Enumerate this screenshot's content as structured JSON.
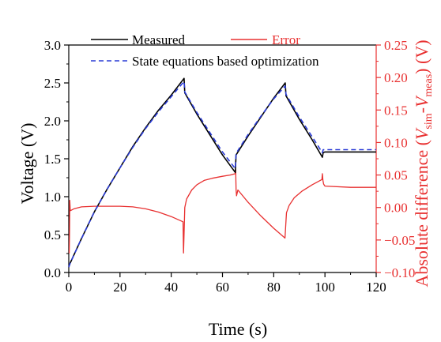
{
  "chart_data": {
    "type": "line",
    "xlabel": "Time (s)",
    "ylabel": "Voltage (V)",
    "ylabel_right": "Absolute difference (V_sim-V_meas) (V)",
    "xlim": [
      0,
      120
    ],
    "ylim": [
      0,
      3.0
    ],
    "ylim_right": [
      -0.1,
      0.25
    ],
    "x_ticks": [
      "0",
      "20",
      "40",
      "60",
      "80",
      "100",
      "120"
    ],
    "y_ticks": [
      "0.0",
      "0.5",
      "1.0",
      "1.5",
      "2.0",
      "2.5",
      "3.0"
    ],
    "y_ticks_right": [
      "−0.10",
      "−0.05",
      "0.00",
      "0.05",
      "0.10",
      "0.15",
      "0.20",
      "0.25"
    ],
    "colors": {
      "measured": "#000000",
      "error": "#e83030",
      "optimization": "#2a3bd6"
    },
    "legend": {
      "placement": "top",
      "measured": "Measured",
      "error": "Error",
      "optimization": "State equations based optimization"
    },
    "series": [
      {
        "name": "Measured",
        "axis": "left",
        "x": [
          0,
          0.5,
          5,
          10,
          15,
          20,
          25,
          30,
          35,
          40,
          45,
          45.3,
          50,
          55,
          60,
          65,
          65.3,
          70,
          75,
          80,
          84.5,
          84.8,
          90,
          95,
          99,
          99.3,
          100,
          110,
          120
        ],
        "y": [
          0.07,
          0.12,
          0.45,
          0.8,
          1.1,
          1.38,
          1.66,
          1.91,
          2.14,
          2.34,
          2.56,
          2.37,
          2.09,
          1.82,
          1.55,
          1.32,
          1.55,
          1.8,
          2.05,
          2.3,
          2.5,
          2.33,
          2.02,
          1.75,
          1.52,
          1.58,
          1.59,
          1.59,
          1.59
        ]
      },
      {
        "name": "State equations based optimization",
        "axis": "left",
        "x": [
          0,
          0.5,
          5,
          10,
          15,
          20,
          25,
          30,
          35,
          40,
          45,
          45.3,
          50,
          55,
          60,
          65,
          65.3,
          70,
          75,
          80,
          84.5,
          84.8,
          90,
          95,
          99,
          99.3,
          100,
          110,
          120
        ],
        "y": [
          0.07,
          0.12,
          0.45,
          0.8,
          1.1,
          1.38,
          1.65,
          1.9,
          2.12,
          2.32,
          2.52,
          2.38,
          2.11,
          1.85,
          1.59,
          1.37,
          1.57,
          1.82,
          2.06,
          2.29,
          2.46,
          2.35,
          2.05,
          1.79,
          1.58,
          1.62,
          1.62,
          1.62,
          1.62
        ]
      },
      {
        "name": "Error",
        "axis": "right",
        "x": [
          0,
          0.2,
          0.3,
          0.4,
          0.6,
          2,
          5,
          10,
          15,
          20,
          25,
          30,
          35,
          40,
          44.6,
          44.8,
          45,
          45.3,
          46,
          48,
          50,
          53,
          56,
          60,
          63,
          65,
          65.15,
          65.3,
          65.5,
          66,
          70,
          75,
          80,
          84.4,
          84.6,
          84.8,
          85,
          86,
          88,
          91,
          95,
          98.8,
          99,
          99.2,
          99.5,
          100,
          110,
          120
        ],
        "y": [
          -0.07,
          -0.07,
          -0.035,
          0.011,
          -0.005,
          -0.002,
          0.001,
          0.002,
          0.002,
          0.002,
          0.001,
          -0.002,
          -0.007,
          -0.014,
          -0.022,
          -0.07,
          -0.04,
          0.0,
          0.013,
          0.027,
          0.035,
          0.042,
          0.045,
          0.048,
          0.05,
          0.052,
          0.058,
          0.028,
          0.018,
          0.027,
          0.008,
          -0.013,
          -0.032,
          -0.047,
          -0.035,
          -0.02,
          -0.008,
          0.003,
          0.015,
          0.025,
          0.035,
          0.043,
          0.052,
          0.042,
          0.036,
          0.033,
          0.031,
          0.031
        ]
      }
    ]
  }
}
